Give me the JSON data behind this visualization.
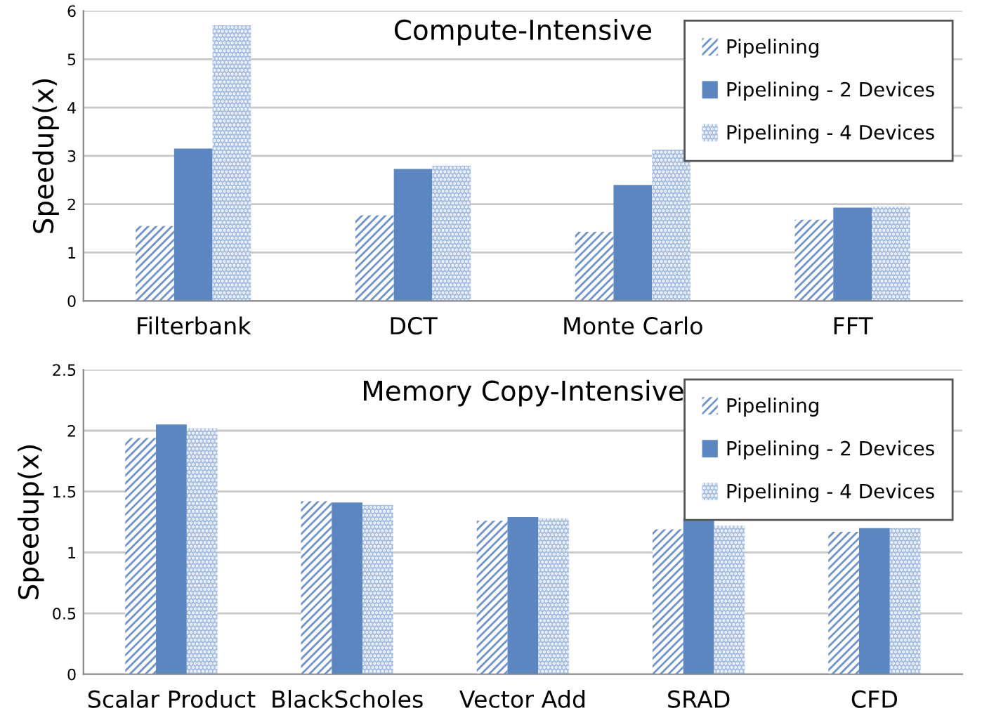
{
  "chart_data": [
    {
      "type": "bar",
      "title": "Compute-Intensive",
      "ylabel": "Speedup(x)",
      "categories": [
        "Filterbank",
        "DCT",
        "Monte Carlo",
        "FFT"
      ],
      "series": [
        {
          "name": "Pipelining",
          "color": "#6f93cc",
          "values": [
            1.55,
            1.77,
            1.43,
            1.68
          ]
        },
        {
          "name": "Pipelining - 2 Devices",
          "color": "#5b86c0",
          "values": [
            3.15,
            2.73,
            2.4,
            1.93
          ]
        },
        {
          "name": "Pipelining - 4 Devices",
          "color": "#a9c0e2",
          "values": [
            5.7,
            2.8,
            3.13,
            1.95
          ]
        }
      ],
      "ylim": [
        0,
        6
      ],
      "yticks": [
        0,
        1,
        2,
        3,
        4,
        5,
        6
      ],
      "grid": "y",
      "legend": "top right"
    },
    {
      "type": "bar",
      "title": "Memory Copy-Intensive",
      "ylabel": "Speedup(x)",
      "categories": [
        "Scalar Product",
        "BlackScholes",
        "Vector Add",
        "SRAD",
        "CFD"
      ],
      "series": [
        {
          "name": "Pipelining",
          "color": "#6f93cc",
          "values": [
            1.94,
            1.42,
            1.26,
            1.19,
            1.17
          ]
        },
        {
          "name": "Pipelining - 2 Devices",
          "color": "#5b86c0",
          "values": [
            2.05,
            1.41,
            1.29,
            1.28,
            1.2
          ]
        },
        {
          "name": "Pipelining - 4 Devices",
          "color": "#a9c0e2",
          "values": [
            2.02,
            1.39,
            1.28,
            1.22,
            1.2
          ]
        }
      ],
      "ylim": [
        0,
        2.5
      ],
      "yticks": [
        0,
        0.5,
        1,
        1.5,
        2,
        2.5
      ],
      "grid": "y",
      "legend": "top right"
    }
  ]
}
